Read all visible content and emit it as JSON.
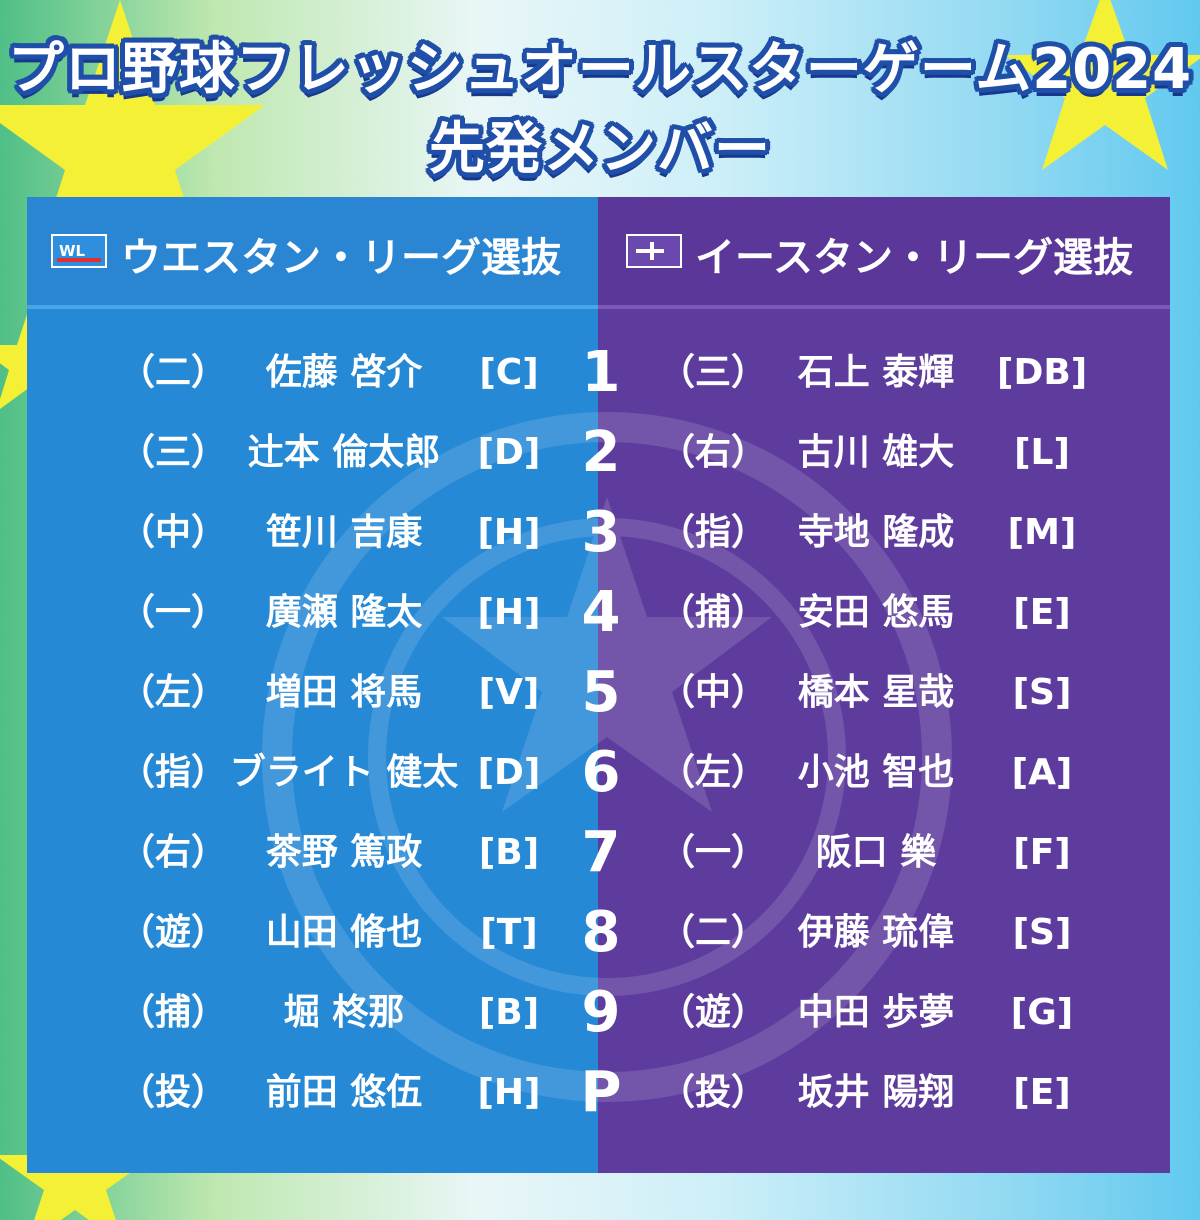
{
  "title": {
    "line1": "プロ野球フレッシュオールスターゲーム2024",
    "line2": "先発メンバー"
  },
  "colors": {
    "west_panel": "#2689d6",
    "east_panel": "#5e3c9e",
    "title_outline": "#1f4fa8",
    "star": "#f3f035"
  },
  "teams": {
    "west": {
      "logo_text": "WL",
      "label": "ウエスタン・リーグ選抜"
    },
    "east": {
      "logo_icon": "eastern-league-logo-icon",
      "label": "イースタン・リーグ選抜"
    }
  },
  "lineup": [
    {
      "order": "1",
      "west": {
        "pos": "（二）",
        "name": "佐藤 啓介",
        "team": "[C]"
      },
      "east": {
        "pos": "（三）",
        "name": "石上 泰輝",
        "team": "[DB]"
      }
    },
    {
      "order": "2",
      "west": {
        "pos": "（三）",
        "name": "辻本 倫太郎",
        "team": "[D]"
      },
      "east": {
        "pos": "（右）",
        "name": "古川 雄大",
        "team": "[L]"
      }
    },
    {
      "order": "3",
      "west": {
        "pos": "（中）",
        "name": "笹川 吉康",
        "team": "[H]"
      },
      "east": {
        "pos": "（指）",
        "name": "寺地 隆成",
        "team": "[M]"
      }
    },
    {
      "order": "4",
      "west": {
        "pos": "（一）",
        "name": "廣瀬 隆太",
        "team": "[H]"
      },
      "east": {
        "pos": "（捕）",
        "name": "安田 悠馬",
        "team": "[E]"
      }
    },
    {
      "order": "5",
      "west": {
        "pos": "（左）",
        "name": "増田 将馬",
        "team": "[V]"
      },
      "east": {
        "pos": "（中）",
        "name": "橋本 星哉",
        "team": "[S]"
      }
    },
    {
      "order": "6",
      "west": {
        "pos": "（指）",
        "name": "ブライト 健太",
        "team": "[D]"
      },
      "east": {
        "pos": "（左）",
        "name": "小池 智也",
        "team": "[A]"
      }
    },
    {
      "order": "7",
      "west": {
        "pos": "（右）",
        "name": "茶野 篤政",
        "team": "[B]"
      },
      "east": {
        "pos": "（一）",
        "name": "阪口 樂",
        "team": "[F]"
      }
    },
    {
      "order": "8",
      "west": {
        "pos": "（遊）",
        "name": "山田 脩也",
        "team": "[T]"
      },
      "east": {
        "pos": "（二）",
        "name": "伊藤 琉偉",
        "team": "[S]"
      }
    },
    {
      "order": "9",
      "west": {
        "pos": "（捕）",
        "name": "堀 柊那",
        "team": "[B]"
      },
      "east": {
        "pos": "（遊）",
        "name": "中田 歩夢",
        "team": "[G]"
      }
    },
    {
      "order": "P",
      "west": {
        "pos": "（投）",
        "name": "前田 悠伍",
        "team": "[H]"
      },
      "east": {
        "pos": "（投）",
        "name": "坂井 陽翔",
        "team": "[E]"
      }
    }
  ]
}
